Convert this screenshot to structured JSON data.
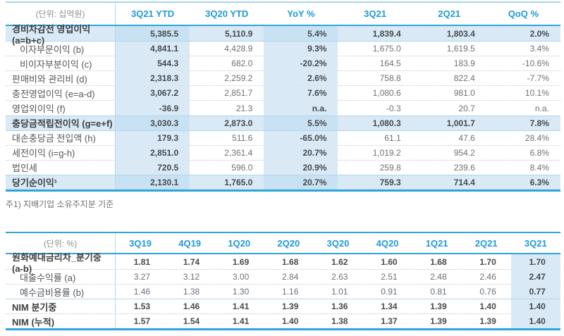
{
  "colors": {
    "accent_blue": "#2ea4dc",
    "header_text_blue": "#1f9ad6",
    "band_light_blue": "#d9eaf6",
    "band_intersection_blue": "#c9e2f3",
    "top_rule_light_blue": "#a7d6ee",
    "label_text": "#3d3f41",
    "value_text": "#6d7073"
  },
  "table1": {
    "unit_label": "(단위: 십억원)",
    "columns": [
      "3Q21 YTD",
      "3Q20 YTD",
      "YoY %",
      "3Q21",
      "2Q21",
      "QoQ %"
    ],
    "highlight_columns": [
      0,
      2
    ],
    "rows": [
      {
        "label": "경비차감전 영업이익 (a=b+c)",
        "bold": true,
        "highlight": true,
        "values": [
          "5,385.5",
          "5,110.9",
          "5.4%",
          "1,839.4",
          "1,803.4",
          "2.0%"
        ]
      },
      {
        "label": "이자부문이익 (b)",
        "indent": true,
        "values": [
          "4,841.1",
          "4,428.9",
          "9.3%",
          "1,675.0",
          "1,619.5",
          "3.4%"
        ]
      },
      {
        "label": "비이자부분이익 (c)",
        "indent": true,
        "values": [
          "544.3",
          "682.0",
          "-20.2%",
          "164.5",
          "183.9",
          "-10.6%"
        ]
      },
      {
        "label": "판매비와 관리비 (d)",
        "values": [
          "2,318.3",
          "2,259.2",
          "2.6%",
          "758.8",
          "822.4",
          "-7.7%"
        ]
      },
      {
        "label": "충전영업이익 (e=a-d)",
        "values": [
          "3,067.2",
          "2,851.7",
          "7.6%",
          "1,080.6",
          "981.0",
          "10.1%"
        ]
      },
      {
        "label": "영업외이익 (f)",
        "values": [
          "-36.9",
          "21.3",
          "n.a.",
          "-0.3",
          "20.7",
          "n.a."
        ]
      },
      {
        "label": "충당금적립전이익 (g=e+f)",
        "bold": true,
        "highlight": true,
        "values": [
          "3,030.3",
          "2,873.0",
          "5.5%",
          "1,080.3",
          "1,001.7",
          "7.8%"
        ]
      },
      {
        "label": "대손충당금 전입액 (h)",
        "values": [
          "179.3",
          "511.6",
          "-65.0%",
          "61.1",
          "47.6",
          "28.4%"
        ]
      },
      {
        "label": "세전이익 (i=g-h)",
        "values": [
          "2,851.0",
          "2,361.4",
          "20.7%",
          "1,019.2",
          "954.2",
          "6.8%"
        ]
      },
      {
        "label": "법인세",
        "values": [
          "720.5",
          "596.0",
          "20.9%",
          "259.8",
          "239.6",
          "8.4%"
        ]
      },
      {
        "label": "당기순이익¹",
        "bold": true,
        "highlight": true,
        "values": [
          "2,130.1",
          "1,765.0",
          "20.7%",
          "759.3",
          "714.4",
          "6.3%"
        ]
      }
    ],
    "footnote": "주1) 지배기업 소유주지분 기준"
  },
  "table2": {
    "unit_label": "(단위: %)",
    "columns": [
      "3Q19",
      "4Q19",
      "1Q20",
      "2Q20",
      "3Q20",
      "4Q20",
      "1Q21",
      "2Q21",
      "3Q21"
    ],
    "highlight_columns": [
      8
    ],
    "rows": [
      {
        "label": "원화예대금리차_분기중 (a-b)",
        "bold": true,
        "values": [
          "1.81",
          "1.74",
          "1.69",
          "1.68",
          "1.62",
          "1.60",
          "1.68",
          "1.70",
          "1.70"
        ]
      },
      {
        "label": "대출수익률 (a)",
        "indent": true,
        "values": [
          "3.27",
          "3.12",
          "3.00",
          "2.84",
          "2.63",
          "2.51",
          "2.48",
          "2.46",
          "2.47"
        ]
      },
      {
        "label": "예수금비용률 (b)",
        "indent": true,
        "values": [
          "1.46",
          "1.38",
          "1.30",
          "1.16",
          "1.01",
          "0.91",
          "0.81",
          "0.76",
          "0.77"
        ]
      },
      {
        "label": "NIM 분기중",
        "bold": true,
        "values": [
          "1.53",
          "1.46",
          "1.41",
          "1.39",
          "1.36",
          "1.34",
          "1.39",
          "1.40",
          "1.40"
        ]
      },
      {
        "label": "NIM (누적)",
        "bold": true,
        "values": [
          "1.57",
          "1.54",
          "1.41",
          "1.40",
          "1.38",
          "1.37",
          "1.39",
          "1.39",
          "1.40"
        ]
      }
    ]
  }
}
